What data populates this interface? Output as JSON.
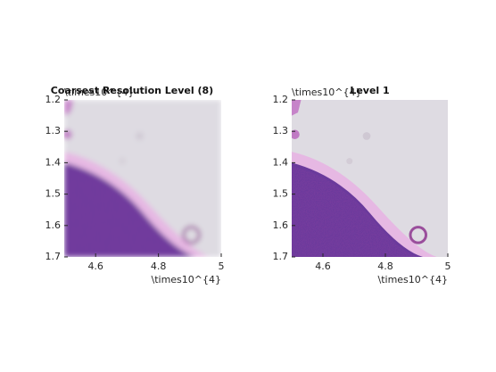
{
  "chart_data": [
    {
      "type": "image",
      "title": "Coarsest Resolution Level (8)",
      "xlim": [
        4.5,
        5
      ],
      "ylim": [
        1.2,
        1.7
      ],
      "y_reversed": true,
      "blurred": true,
      "xticks": [
        4.6,
        4.8,
        5
      ],
      "yticks": [
        1.2,
        1.3,
        1.4,
        1.5,
        1.6,
        1.7
      ],
      "x_exponent_label": "\\times10^{4}",
      "y_exponent_label": "\\times10^{4}"
    },
    {
      "type": "image",
      "title": "Level 1",
      "xlim": [
        4.5,
        5
      ],
      "ylim": [
        1.2,
        1.7
      ],
      "y_reversed": true,
      "blurred": false,
      "xticks": [
        4.6,
        4.8,
        5
      ],
      "yticks": [
        1.2,
        1.3,
        1.4,
        1.5,
        1.6,
        1.7
      ],
      "x_exponent_label": "\\times10^{4}",
      "y_exponent_label": "\\times10^{4}"
    }
  ]
}
